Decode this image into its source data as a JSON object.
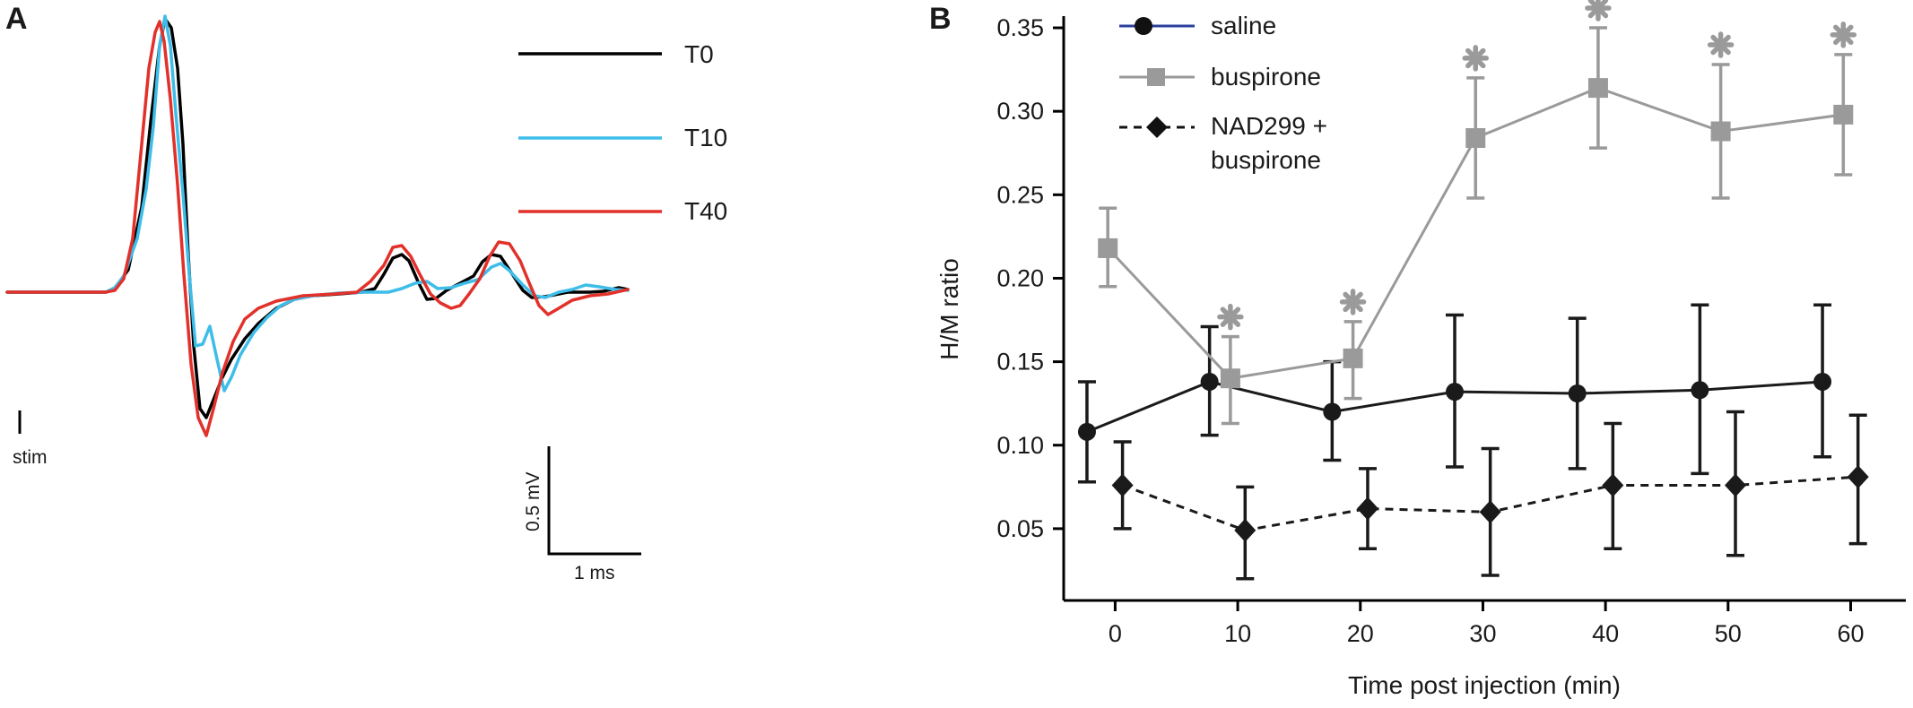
{
  "panels": {
    "a_label": "A",
    "b_label": "B"
  },
  "colors": {
    "t0": "#000000",
    "t10": "#3fbde9",
    "t40": "#e2312a",
    "saline": "#1a1a1a",
    "saline_legend": "#2b3f9e",
    "buspirone": "#9a9a9a",
    "nad": "#1a1a1a"
  },
  "chart_data": [
    {
      "type": "line",
      "title": "",
      "xlabel": "",
      "ylabel": "",
      "legend": {
        "placement": "top-right",
        "entries": [
          "T0",
          "T10",
          "T40"
        ]
      },
      "annotations": {
        "stim": "stim"
      },
      "scale_bar": {
        "voltage_label": "0.5 mV",
        "time_label": "1 ms",
        "voltage_mv": 0.5,
        "time_ms": 1
      },
      "units": "mV vs ms (x: 1 ms = 100 units; y: 0.5 mV = 122 units, positive up; baseline 0)",
      "series": [
        {
          "name": "T0",
          "color": "#000000",
          "points": [
            [
              0,
              0
            ],
            [
              110,
              0
            ],
            [
              120,
              4
            ],
            [
              135,
              25
            ],
            [
              150,
              95
            ],
            [
              160,
              190
            ],
            [
              170,
              275
            ],
            [
              176,
              305
            ],
            [
              183,
              295
            ],
            [
              190,
              250
            ],
            [
              196,
              165
            ],
            [
              202,
              40
            ],
            [
              208,
              -60
            ],
            [
              215,
              -130
            ],
            [
              222,
              -140
            ],
            [
              230,
              -120
            ],
            [
              240,
              -95
            ],
            [
              250,
              -75
            ],
            [
              265,
              -52
            ],
            [
              280,
              -35
            ],
            [
              300,
              -18
            ],
            [
              320,
              -8
            ],
            [
              340,
              -4
            ],
            [
              370,
              -2
            ],
            [
              395,
              0
            ],
            [
              410,
              4
            ],
            [
              420,
              20
            ],
            [
              430,
              38
            ],
            [
              440,
              42
            ],
            [
              448,
              35
            ],
            [
              458,
              12
            ],
            [
              468,
              -8
            ],
            [
              478,
              -7
            ],
            [
              490,
              2
            ],
            [
              505,
              10
            ],
            [
              520,
              18
            ],
            [
              530,
              34
            ],
            [
              540,
              42
            ],
            [
              550,
              40
            ],
            [
              562,
              22
            ],
            [
              575,
              2
            ],
            [
              585,
              -6
            ],
            [
              600,
              -5
            ],
            [
              625,
              0
            ],
            [
              650,
              0
            ],
            [
              665,
              1
            ],
            [
              682,
              5
            ],
            [
              692,
              3
            ]
          ]
        },
        {
          "name": "T10",
          "color": "#3fbde9",
          "points": [
            [
              0,
              0
            ],
            [
              110,
              0
            ],
            [
              120,
              5
            ],
            [
              130,
              18
            ],
            [
              145,
              60
            ],
            [
              155,
              115
            ],
            [
              163,
              185
            ],
            [
              170,
              275
            ],
            [
              176,
              308
            ],
            [
              182,
              275
            ],
            [
              188,
              200
            ],
            [
              196,
              110
            ],
            [
              203,
              20
            ],
            [
              210,
              -60
            ],
            [
              218,
              -58
            ],
            [
              226,
              -38
            ],
            [
              234,
              -75
            ],
            [
              242,
              -110
            ],
            [
              250,
              -95
            ],
            [
              260,
              -70
            ],
            [
              275,
              -45
            ],
            [
              290,
              -28
            ],
            [
              305,
              -15
            ],
            [
              320,
              -8
            ],
            [
              340,
              -4
            ],
            [
              370,
              -1
            ],
            [
              400,
              0
            ],
            [
              425,
              0
            ],
            [
              440,
              4
            ],
            [
              455,
              10
            ],
            [
              468,
              12
            ],
            [
              480,
              4
            ],
            [
              495,
              5
            ],
            [
              510,
              10
            ],
            [
              525,
              14
            ],
            [
              540,
              28
            ],
            [
              550,
              32
            ],
            [
              560,
              24
            ],
            [
              575,
              8
            ],
            [
              588,
              -4
            ],
            [
              600,
              -6
            ],
            [
              615,
              0
            ],
            [
              630,
              3
            ],
            [
              645,
              8
            ],
            [
              660,
              6
            ],
            [
              678,
              3
            ],
            [
              692,
              2
            ]
          ]
        },
        {
          "name": "T40",
          "color": "#e2312a",
          "points": [
            [
              0,
              0
            ],
            [
              110,
              0
            ],
            [
              120,
              2
            ],
            [
              130,
              15
            ],
            [
              140,
              60
            ],
            [
              150,
              165
            ],
            [
              158,
              250
            ],
            [
              165,
              290
            ],
            [
              170,
              302
            ],
            [
              175,
              280
            ],
            [
              182,
              215
            ],
            [
              190,
              120
            ],
            [
              197,
              20
            ],
            [
              205,
              -80
            ],
            [
              213,
              -140
            ],
            [
              222,
              -160
            ],
            [
              230,
              -130
            ],
            [
              240,
              -90
            ],
            [
              252,
              -55
            ],
            [
              265,
              -30
            ],
            [
              280,
              -18
            ],
            [
              300,
              -10
            ],
            [
              330,
              -4
            ],
            [
              365,
              -2
            ],
            [
              390,
              0
            ],
            [
              405,
              12
            ],
            [
              420,
              30
            ],
            [
              430,
              50
            ],
            [
              440,
              52
            ],
            [
              450,
              40
            ],
            [
              460,
              20
            ],
            [
              472,
              -2
            ],
            [
              483,
              -12
            ],
            [
              495,
              -18
            ],
            [
              505,
              -15
            ],
            [
              515,
              -2
            ],
            [
              527,
              15
            ],
            [
              538,
              40
            ],
            [
              548,
              56
            ],
            [
              560,
              54
            ],
            [
              572,
              35
            ],
            [
              583,
              8
            ],
            [
              593,
              -15
            ],
            [
              603,
              -25
            ],
            [
              615,
              -18
            ],
            [
              630,
              -9
            ],
            [
              650,
              -4
            ],
            [
              670,
              -2
            ],
            [
              692,
              3
            ]
          ]
        }
      ]
    },
    {
      "type": "line",
      "title": "",
      "xlabel": "Time post injection (min)",
      "ylabel": "H/M ratio",
      "xlim": [
        -4.2,
        64.5
      ],
      "ylim": [
        0.007,
        0.357
      ],
      "xticks": [
        0,
        10,
        20,
        30,
        40,
        50,
        60
      ],
      "yticks": [
        0.05,
        0.1,
        0.15,
        0.2,
        0.25,
        0.3,
        0.35
      ],
      "xtick_labels": [
        "0",
        "10",
        "20",
        "30",
        "40",
        "50",
        "60"
      ],
      "ytick_labels": [
        "0.05",
        "0.10",
        "0.15",
        "0.20",
        "0.25",
        "0.30",
        "0.35"
      ],
      "grid": false,
      "legend": {
        "placement": "top-left",
        "entries": [
          "saline",
          "buspirone",
          "NAD299 +",
          "buspirone"
        ]
      },
      "significance_marker": "*",
      "series": [
        {
          "name": "saline",
          "marker": "circle",
          "style": "solid",
          "x": [
            -2.3,
            7.7,
            17.7,
            27.7,
            37.7,
            47.7,
            57.7
          ],
          "y": [
            0.108,
            0.138,
            0.12,
            0.132,
            0.131,
            0.133,
            0.138
          ],
          "err_low": [
            0.078,
            0.106,
            0.091,
            0.087,
            0.086,
            0.083,
            0.093
          ],
          "err_high": [
            0.138,
            0.171,
            0.15,
            0.178,
            0.176,
            0.184,
            0.184
          ]
        },
        {
          "name": "buspirone",
          "marker": "square",
          "style": "solid",
          "x": [
            -0.6,
            9.4,
            19.4,
            29.4,
            39.4,
            49.4,
            59.4
          ],
          "y": [
            0.218,
            0.14,
            0.152,
            0.284,
            0.314,
            0.288,
            0.298
          ],
          "err_low": [
            0.195,
            0.113,
            0.128,
            0.248,
            0.278,
            0.248,
            0.262
          ],
          "err_high": [
            0.242,
            0.165,
            0.174,
            0.32,
            0.35,
            0.328,
            0.334
          ],
          "significant": [
            false,
            true,
            true,
            true,
            true,
            true,
            true
          ]
        },
        {
          "name": "NAD299 + buspirone",
          "marker": "diamond",
          "style": "dashed",
          "x": [
            0.6,
            10.6,
            20.6,
            30.6,
            40.6,
            50.6,
            60.6
          ],
          "y": [
            0.076,
            0.049,
            0.062,
            0.06,
            0.076,
            0.076,
            0.081
          ],
          "err_low": [
            0.05,
            0.02,
            0.038,
            0.022,
            0.038,
            0.034,
            0.041
          ],
          "err_high": [
            0.102,
            0.075,
            0.086,
            0.098,
            0.113,
            0.12,
            0.118
          ]
        }
      ]
    }
  ]
}
